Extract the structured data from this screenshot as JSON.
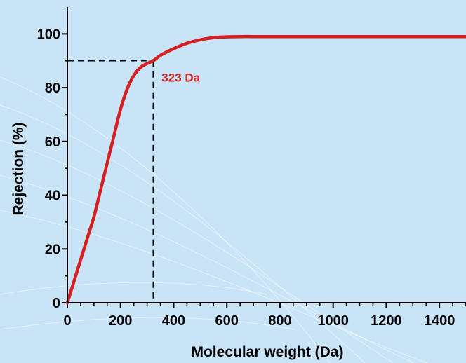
{
  "colors": {
    "background": "#c9e3f7",
    "curve": "#d42020",
    "axis": "#000000",
    "annotation": "#d42020"
  },
  "chart_data": {
    "type": "line",
    "xlabel": "Molecular weight (Da)",
    "ylabel": "Rejection (%)",
    "xlim": [
      0,
      1500
    ],
    "ylim": [
      0,
      110
    ],
    "x_ticks": [
      0,
      200,
      400,
      600,
      800,
      1000,
      1200,
      1400
    ],
    "y_ticks": [
      0,
      20,
      40,
      60,
      80,
      100
    ],
    "grid": false,
    "series": [
      {
        "x": [
          0,
          25,
          50,
          75,
          100,
          125,
          150,
          175,
          200,
          225,
          250,
          275,
          300,
          323,
          350,
          400,
          450,
          500,
          550,
          600,
          650,
          700,
          800,
          900,
          1000,
          1100,
          1200,
          1300,
          1400,
          1500
        ],
        "values": [
          0,
          8,
          16,
          24,
          32,
          42,
          52,
          62,
          72,
          79.5,
          84.5,
          87.5,
          89,
          90,
          92,
          94.5,
          96.5,
          97.8,
          98.6,
          98.9,
          99,
          99,
          99,
          99,
          99,
          99,
          99,
          99,
          99,
          99
        ]
      }
    ],
    "reference_point": {
      "x": 323,
      "y": 90
    },
    "annotations": [
      {
        "text": "323 Da",
        "x": 323,
        "y": 90
      }
    ]
  }
}
